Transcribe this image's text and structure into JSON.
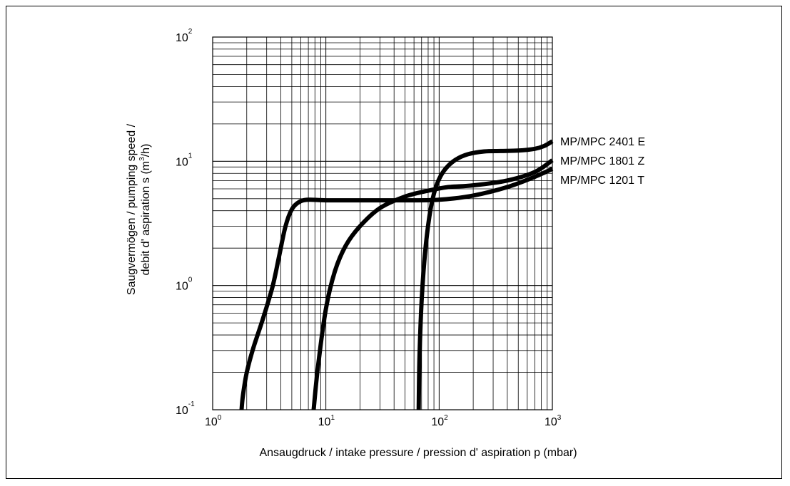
{
  "chart_data": {
    "type": "line",
    "title": "",
    "xlabel": "Ansaugdruck / intake pressure / pression d' aspiration p (mbar)",
    "ylabel_line1": "Saugvermögen / pumping speed /",
    "ylabel_line2": "debit d' aspiration s (m",
    "ylabel_sup": "3",
    "ylabel_end": "/h)",
    "x_scale": "log",
    "y_scale": "log",
    "xlim": [
      1,
      1000
    ],
    "ylim": [
      0.1,
      100
    ],
    "grid": true,
    "x_ticks": [
      {
        "base": "10",
        "exp": "0",
        "value": 1
      },
      {
        "base": "10",
        "exp": "1",
        "value": 10
      },
      {
        "base": "10",
        "exp": "2",
        "value": 100
      },
      {
        "base": "10",
        "exp": "3",
        "value": 1000
      }
    ],
    "y_ticks": [
      {
        "base": "10",
        "exp": "-1",
        "value": 0.1
      },
      {
        "base": "10",
        "exp": "0",
        "value": 1
      },
      {
        "base": "10",
        "exp": "1",
        "value": 10
      },
      {
        "base": "10",
        "exp": "2",
        "value": 100
      }
    ],
    "series": [
      {
        "name": "MP/MPC 1201 T",
        "x": [
          1.8,
          1.85,
          2.0,
          2.3,
          2.8,
          3.4,
          3.9,
          4.4,
          5.0,
          5.8,
          7,
          10,
          20,
          50,
          100,
          200,
          400,
          700,
          1000
        ],
        "y": [
          0.1,
          0.13,
          0.2,
          0.32,
          0.55,
          1.0,
          1.8,
          3.0,
          4.1,
          4.7,
          4.9,
          4.85,
          4.85,
          4.85,
          4.9,
          5.3,
          6.2,
          7.5,
          8.7
        ]
      },
      {
        "name": "MP/MPC 1801 Z",
        "x": [
          7.8,
          8.5,
          10,
          12,
          15,
          20,
          30,
          50,
          80,
          120,
          200,
          400,
          700,
          1000
        ],
        "y": [
          0.1,
          0.22,
          0.65,
          1.3,
          2.1,
          3.0,
          4.2,
          5.2,
          5.8,
          6.2,
          6.4,
          7.0,
          8.2,
          10.2
        ]
      },
      {
        "name": "MP/MPC 2401 E",
        "x": [
          66,
          67,
          70,
          75,
          82,
          90,
          100,
          115,
          140,
          180,
          250,
          350,
          500,
          700,
          850,
          1000
        ],
        "y": [
          0.1,
          0.25,
          0.75,
          1.8,
          3.6,
          5.5,
          7.2,
          8.8,
          10.3,
          11.4,
          12.0,
          12.1,
          12.2,
          12.6,
          13.3,
          14.5
        ]
      }
    ]
  }
}
